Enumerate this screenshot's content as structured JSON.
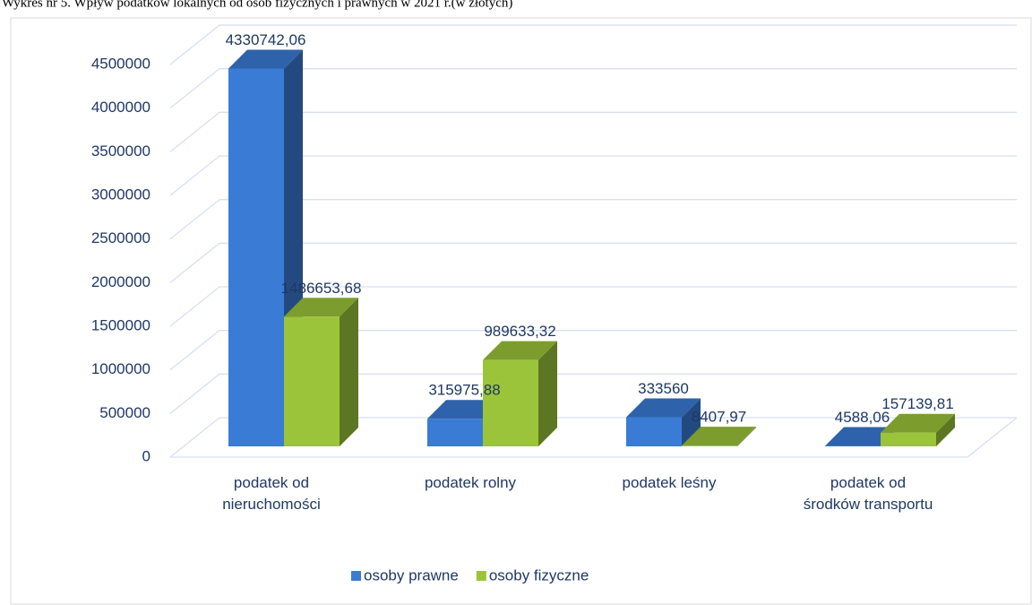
{
  "chart_data": {
    "type": "bar3d",
    "title": "Wykres nr 5. Wpływ podatków lokalnych od osób fizycznych i prawnych w 2021 r.(w złotych)",
    "categories": [
      "podatek od nieruchomości",
      "podatek rolny",
      "podatek leśny",
      "podatek od środków transportu"
    ],
    "series": [
      {
        "name": "osoby prawne",
        "color": "#3a7bd5",
        "values": [
          4330742.06,
          315975.88,
          333560,
          4588.06
        ],
        "value_labels": [
          "4330742,06",
          "315975,88",
          "333560",
          "4588,06"
        ]
      },
      {
        "name": "osoby fizyczne",
        "color": "#9bc43a",
        "values": [
          1486653.68,
          989633.32,
          8407.97,
          157139.81
        ],
        "value_labels": [
          "1486653,68",
          "989633,32",
          "8407,97",
          "157139,81"
        ]
      }
    ],
    "ylim": [
      0,
      4500000
    ],
    "yticks": [
      0,
      500000,
      1000000,
      1500000,
      2000000,
      2500000,
      3000000,
      3500000,
      4000000,
      4500000
    ],
    "grid": true,
    "legend": "bottom"
  }
}
